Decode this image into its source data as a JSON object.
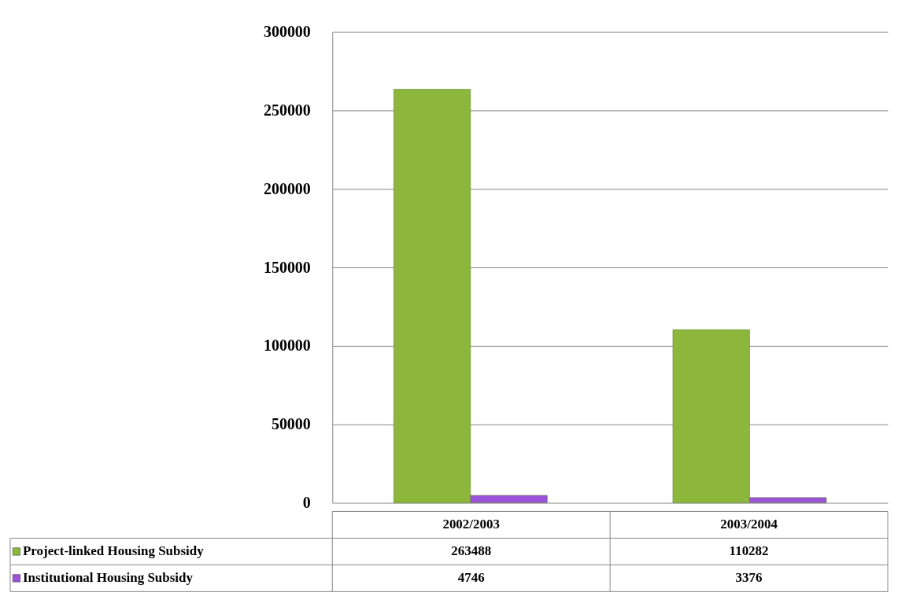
{
  "chart_data": {
    "type": "bar",
    "categories": [
      "2002/2003",
      "2003/2004"
    ],
    "series": [
      {
        "name": "Project-linked Housing Subsidy",
        "color": "#8cb63c",
        "values": [
          263488,
          110282
        ]
      },
      {
        "name": "Institutional Housing Subsidy",
        "color": "#9a52d6",
        "values": [
          4746,
          3376
        ]
      }
    ],
    "ylim": [
      0,
      300000
    ],
    "yticks": [
      0,
      50000,
      100000,
      150000,
      200000,
      250000,
      300000
    ],
    "grid": "y",
    "legend": "bottom",
    "data_labels": true
  }
}
